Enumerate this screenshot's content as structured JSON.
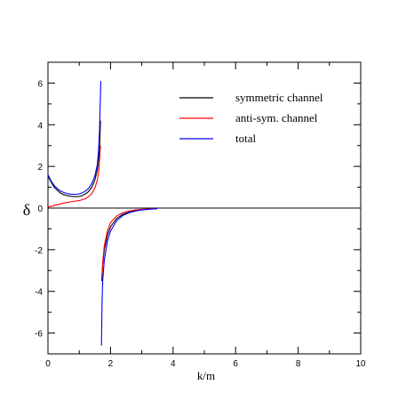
{
  "chart_data": {
    "type": "line",
    "title": "",
    "xlabel": "k/m",
    "ylabel": "δ",
    "xlim": [
      0,
      10
    ],
    "ylim": [
      -7,
      7
    ],
    "xticks": [
      0,
      2,
      4,
      6,
      8,
      10
    ],
    "xtick_labels": [
      "0",
      "2",
      "4",
      "6",
      "8",
      "10"
    ],
    "yticks": [
      -6,
      -4,
      -2,
      0,
      2,
      4,
      6
    ],
    "ytick_labels": [
      "-6",
      "-4",
      "-2",
      "0",
      "2",
      "4",
      "6"
    ],
    "grid": false,
    "legend_position": "top-right",
    "zero_line": true,
    "colors": {
      "symmetric": "#000000",
      "antisym": "#ff0000",
      "total": "#0000ff",
      "axis": "#000000",
      "background": "#ffffff"
    },
    "series": [
      {
        "name": "symmetric channel",
        "color": "#000000",
        "segments": [
          [
            [
              0,
              1.55
            ],
            [
              0.1,
              1.25
            ],
            [
              0.2,
              1.0
            ],
            [
              0.3,
              0.85
            ],
            [
              0.4,
              0.72
            ],
            [
              0.5,
              0.65
            ],
            [
              0.6,
              0.6
            ],
            [
              0.7,
              0.57
            ],
            [
              0.8,
              0.55
            ],
            [
              0.9,
              0.55
            ],
            [
              1.0,
              0.56
            ],
            [
              1.1,
              0.6
            ],
            [
              1.2,
              0.68
            ],
            [
              1.3,
              0.8
            ],
            [
              1.4,
              1.0
            ],
            [
              1.5,
              1.35
            ],
            [
              1.58,
              1.85
            ],
            [
              1.63,
              2.5
            ],
            [
              1.66,
              3.3
            ],
            [
              1.68,
              4.2
            ]
          ],
          [
            [
              1.72,
              -3.5
            ],
            [
              1.75,
              -2.7
            ],
            [
              1.8,
              -2.0
            ],
            [
              1.9,
              -1.3
            ],
            [
              2.0,
              -0.9
            ],
            [
              2.2,
              -0.5
            ],
            [
              2.4,
              -0.3
            ],
            [
              2.6,
              -0.2
            ],
            [
              2.8,
              -0.12
            ],
            [
              3.0,
              -0.08
            ],
            [
              3.2,
              -0.05
            ],
            [
              3.4,
              -0.03
            ]
          ]
        ]
      },
      {
        "name": "anti-sym. channel",
        "color": "#ff0000",
        "segments": [
          [
            [
              0,
              0.05
            ],
            [
              0.2,
              0.12
            ],
            [
              0.4,
              0.2
            ],
            [
              0.6,
              0.27
            ],
            [
              0.8,
              0.32
            ],
            [
              1.0,
              0.36
            ],
            [
              1.2,
              0.45
            ],
            [
              1.3,
              0.55
            ],
            [
              1.4,
              0.7
            ],
            [
              1.5,
              0.95
            ],
            [
              1.58,
              1.35
            ],
            [
              1.63,
              1.9
            ],
            [
              1.66,
              2.5
            ],
            [
              1.68,
              3.0
            ]
          ],
          [
            [
              1.72,
              -3.4
            ],
            [
              1.75,
              -2.6
            ],
            [
              1.8,
              -1.8
            ],
            [
              1.9,
              -1.1
            ],
            [
              2.0,
              -0.7
            ],
            [
              2.2,
              -0.38
            ],
            [
              2.4,
              -0.22
            ],
            [
              2.6,
              -0.14
            ],
            [
              2.8,
              -0.09
            ],
            [
              3.0,
              -0.06
            ],
            [
              3.2,
              -0.04
            ],
            [
              3.4,
              -0.02
            ]
          ]
        ]
      },
      {
        "name": "total",
        "color": "#0000ff",
        "segments": [
          [
            [
              0,
              1.6
            ],
            [
              0.1,
              1.3
            ],
            [
              0.2,
              1.08
            ],
            [
              0.3,
              0.93
            ],
            [
              0.4,
              0.82
            ],
            [
              0.5,
              0.75
            ],
            [
              0.6,
              0.7
            ],
            [
              0.7,
              0.67
            ],
            [
              0.8,
              0.66
            ],
            [
              0.9,
              0.66
            ],
            [
              1.0,
              0.68
            ],
            [
              1.1,
              0.73
            ],
            [
              1.2,
              0.82
            ],
            [
              1.3,
              0.95
            ],
            [
              1.4,
              1.18
            ],
            [
              1.5,
              1.55
            ],
            [
              1.58,
              2.1
            ],
            [
              1.62,
              2.8
            ],
            [
              1.65,
              3.8
            ],
            [
              1.67,
              5.0
            ],
            [
              1.69,
              6.1
            ]
          ],
          [
            [
              1.71,
              -6.6
            ],
            [
              1.73,
              -4.5
            ],
            [
              1.75,
              -3.5
            ],
            [
              1.8,
              -2.5
            ],
            [
              1.9,
              -1.6
            ],
            [
              2.0,
              -1.1
            ],
            [
              2.2,
              -0.6
            ],
            [
              2.4,
              -0.35
            ],
            [
              2.6,
              -0.22
            ],
            [
              2.8,
              -0.14
            ],
            [
              3.0,
              -0.09
            ],
            [
              3.2,
              -0.06
            ],
            [
              3.4,
              -0.04
            ],
            [
              3.5,
              -0.03
            ]
          ]
        ]
      }
    ]
  }
}
